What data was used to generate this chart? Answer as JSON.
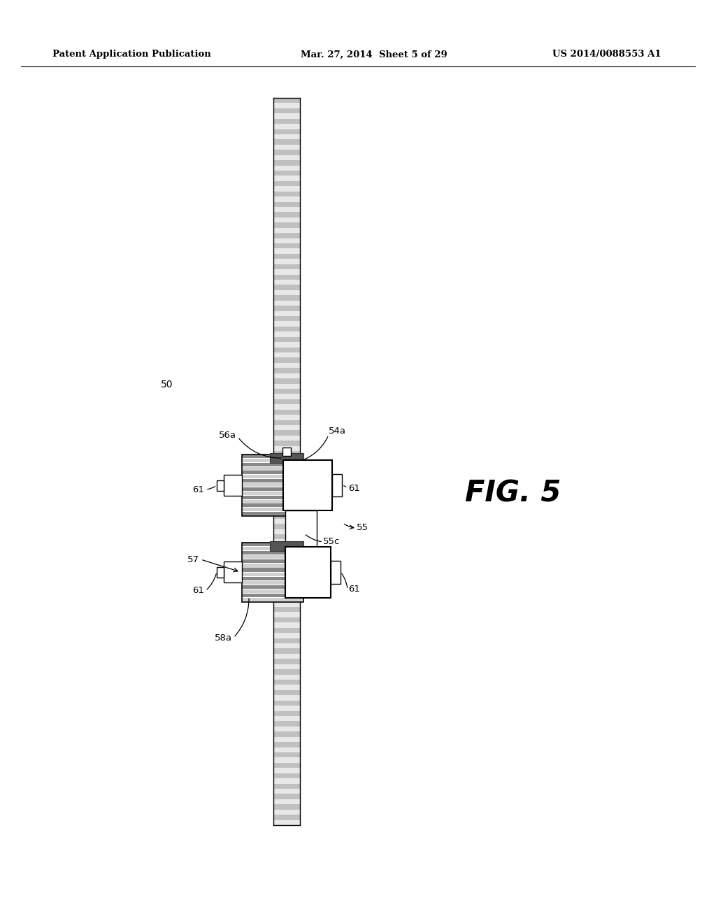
{
  "bg_color": "#ffffff",
  "header_left": "Patent Application Publication",
  "header_center": "Mar. 27, 2014  Sheet 5 of 29",
  "header_right": "US 2014/0088553 A1",
  "fig_label": "FIG. 5",
  "label_50": "50",
  "label_54a": "54a",
  "label_55": "55",
  "label_55c": "55c",
  "label_56a": "56a",
  "label_57": "57",
  "label_58a": "58a"
}
